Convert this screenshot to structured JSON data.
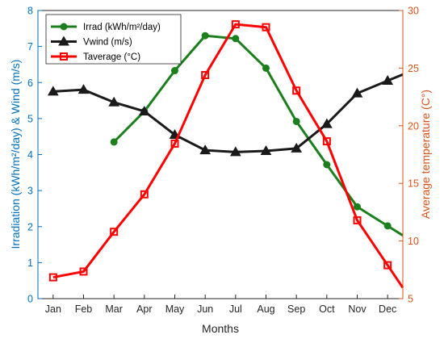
{
  "chart_data": {
    "type": "line",
    "categories": [
      "Jan",
      "Feb",
      "Mar",
      "Apr",
      "May",
      "Jun",
      "Jul",
      "Aug",
      "Sep",
      "Oct",
      "Nov",
      "Dec"
    ],
    "xlabel": "Months",
    "ylabel_left": "Irradiation (kWh/m²/day) & Wind (m/s)",
    "ylabel_right": "Average temperature (C°)",
    "ylim_left": [
      0,
      8
    ],
    "ylim_right": [
      5,
      30
    ],
    "yticks_left": [
      "0",
      "1",
      "2",
      "3",
      "4",
      "5",
      "6",
      "7",
      "8"
    ],
    "yticks_right": [
      "5",
      "10",
      "15",
      "20",
      "25",
      "30"
    ],
    "left_axis_color": "#0072bd",
    "right_axis_color": "#d95319",
    "grid": false,
    "legend_position": "top-left",
    "series": [
      {
        "name": "Irrad (kWh/m²/day)",
        "axis": "left",
        "color": "#1b7f1b",
        "marker": "circle",
        "values": [
          null,
          null,
          4.35,
          5.2,
          6.33,
          7.3,
          7.22,
          6.4,
          4.92,
          3.72,
          2.55,
          2.02
        ]
      },
      {
        "name": "Vwind (m/s)",
        "axis": "left",
        "color": "#1a1a1a",
        "marker": "triangle",
        "values": [
          5.75,
          5.8,
          5.45,
          5.2,
          4.55,
          4.12,
          4.07,
          4.1,
          4.17,
          4.85,
          5.7,
          6.05
        ]
      },
      {
        "name": "Taverage (°C)",
        "axis": "right",
        "color": "#ff0000",
        "marker": "square",
        "values": [
          6.85,
          7.35,
          10.8,
          14.05,
          18.45,
          24.4,
          28.8,
          28.55,
          23.05,
          18.65,
          11.8,
          7.9
        ]
      }
    ]
  }
}
